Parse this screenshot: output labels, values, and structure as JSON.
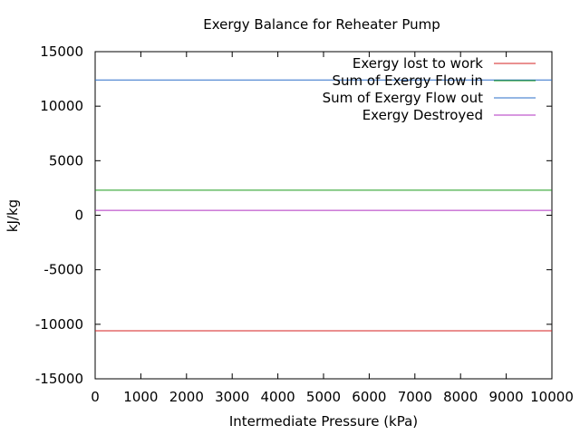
{
  "chart_data": {
    "type": "line",
    "title": "Exergy Balance for Reheater Pump",
    "xlabel": "Intermediate Pressure (kPa)",
    "ylabel": "kJ/kg",
    "xlim": [
      0,
      10000
    ],
    "ylim": [
      -15000,
      15000
    ],
    "xticks": [
      0,
      1000,
      2000,
      3000,
      4000,
      5000,
      6000,
      7000,
      8000,
      9000,
      10000
    ],
    "yticks": [
      -15000,
      -10000,
      -5000,
      0,
      5000,
      10000,
      15000
    ],
    "grid": false,
    "legend_position": "top-right",
    "series": [
      {
        "name": "Exergy lost to work",
        "color": "#d62020",
        "x": [
          0,
          10000
        ],
        "y": [
          -10600,
          -10600
        ]
      },
      {
        "name": "Sum of Exergy Flow in",
        "color": "#1a9a1a",
        "x": [
          0,
          10000
        ],
        "y": [
          2300,
          2300
        ]
      },
      {
        "name": "Sum of Exergy Flow out",
        "color": "#2a6fc9",
        "x": [
          0,
          10000
        ],
        "y": [
          12400,
          12400
        ]
      },
      {
        "name": "Exergy Destroyed",
        "color": "#b030c0",
        "x": [
          0,
          10000
        ],
        "y": [
          450,
          450
        ]
      }
    ]
  }
}
